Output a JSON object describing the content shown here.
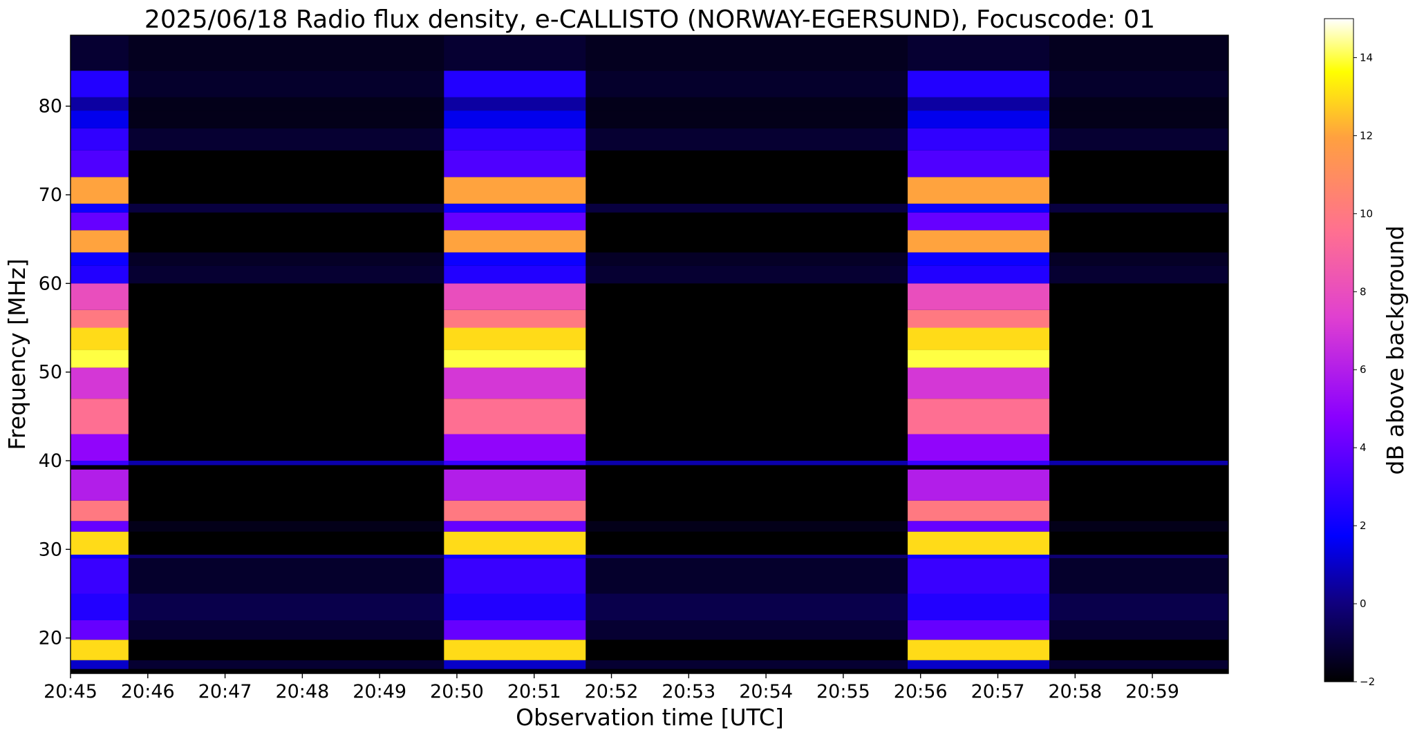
{
  "chart_data": {
    "type": "heatmap",
    "title": "2025/06/18  Radio flux density, e-CALLISTO (NORWAY-EGERSUND), Focuscode: 01",
    "xlabel": "Observation time [UTC]",
    "ylabel": "Frequency [MHz]",
    "colorbar_label": "dB above background",
    "colormap": "gnuplot2",
    "x_ticks": [
      "20:45",
      "20:46",
      "20:47",
      "20:48",
      "20:49",
      "20:50",
      "20:51",
      "20:52",
      "20:53",
      "20:54",
      "20:55",
      "20:56",
      "20:57",
      "20:58",
      "20:59"
    ],
    "xlim": [
      "20:45:00",
      "20:59:59"
    ],
    "y_ticks": [
      20,
      30,
      40,
      50,
      60,
      70,
      80
    ],
    "ylim": [
      16,
      88
    ],
    "colorbar_ticks": [
      -2,
      0,
      2,
      4,
      6,
      8,
      10,
      12,
      14
    ],
    "clim": [
      -2,
      15
    ],
    "bright_intervals": [
      {
        "start": "20:45:00",
        "end": "20:45:45"
      },
      {
        "start": "20:49:50",
        "end": "20:51:40"
      },
      {
        "start": "20:55:50",
        "end": "20:57:40"
      }
    ],
    "band_profile": [
      {
        "f_low": 16.5,
        "f_high": 17.5,
        "on": 1,
        "off": -1.2
      },
      {
        "f_low": 17.5,
        "f_high": 19.8,
        "on": 13,
        "off": -2
      },
      {
        "f_low": 19.8,
        "f_high": 22,
        "on": 4,
        "off": -1.2
      },
      {
        "f_low": 22,
        "f_high": 25,
        "on": 2.5,
        "off": -0.8
      },
      {
        "f_low": 25,
        "f_high": 29,
        "on": 3,
        "off": -1.3
      },
      {
        "f_low": 29,
        "f_high": 29.4,
        "on": 2,
        "off": -0.2
      },
      {
        "f_low": 29.4,
        "f_high": 32,
        "on": 13,
        "off": -2
      },
      {
        "f_low": 32,
        "f_high": 33.2,
        "on": 4,
        "off": -1.6
      },
      {
        "f_low": 33.2,
        "f_high": 35.5,
        "on": 10,
        "off": -2
      },
      {
        "f_low": 35.5,
        "f_high": 39,
        "on": 6,
        "off": -2
      },
      {
        "f_low": 39.5,
        "f_high": 40,
        "on": 3,
        "off": 0.6
      },
      {
        "f_low": 40,
        "f_high": 43,
        "on": 5,
        "off": -2
      },
      {
        "f_low": 43,
        "f_high": 47,
        "on": 9.5,
        "off": -2
      },
      {
        "f_low": 47,
        "f_high": 50.5,
        "on": 7,
        "off": -2
      },
      {
        "f_low": 50.5,
        "f_high": 52.5,
        "on": 14,
        "off": -2
      },
      {
        "f_low": 52.5,
        "f_high": 55,
        "on": 13,
        "off": -2
      },
      {
        "f_low": 55,
        "f_high": 57,
        "on": 10,
        "off": -2
      },
      {
        "f_low": 57,
        "f_high": 60,
        "on": 8,
        "off": -2
      },
      {
        "f_low": 60,
        "f_high": 62,
        "on": 2.5,
        "off": -1.2
      },
      {
        "f_low": 62,
        "f_high": 63.5,
        "on": 2,
        "off": -1.4
      },
      {
        "f_low": 63.5,
        "f_high": 66,
        "on": 12,
        "off": -2
      },
      {
        "f_low": 66,
        "f_high": 68,
        "on": 4,
        "off": -2
      },
      {
        "f_low": 68,
        "f_high": 69,
        "on": 2,
        "off": -1
      },
      {
        "f_low": 69,
        "f_high": 72,
        "on": 12,
        "off": -2
      },
      {
        "f_low": 72,
        "f_high": 75,
        "on": 3.5,
        "off": -2
      },
      {
        "f_low": 75,
        "f_high": 77.5,
        "on": 2.8,
        "off": -1.2
      },
      {
        "f_low": 77.5,
        "f_high": 79.5,
        "on": 1.5,
        "off": -1.6
      },
      {
        "f_low": 79.5,
        "f_high": 81,
        "on": 0.5,
        "off": -1.6
      },
      {
        "f_low": 81,
        "f_high": 84,
        "on": 2.5,
        "off": -1.3
      },
      {
        "f_low": 84,
        "f_high": 88,
        "on": -1.2,
        "off": -1.5
      }
    ]
  }
}
